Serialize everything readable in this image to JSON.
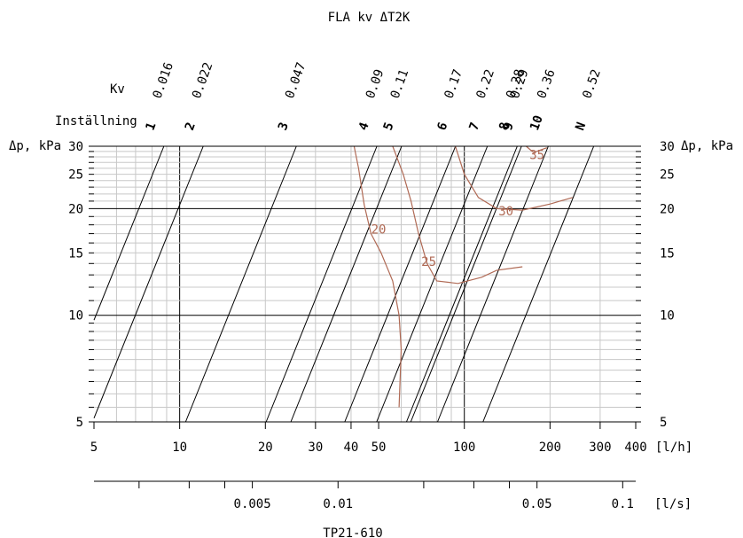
{
  "chart_data": {
    "type": "line",
    "title": "FLA  kv ΔT2K",
    "footer": "TP21-610",
    "x_axis": {
      "unit": "[l/h]",
      "scale": "log",
      "range": [
        5,
        400
      ],
      "tick_labels": [
        "5",
        "10",
        "20",
        "30",
        "40",
        "50",
        "100",
        "200",
        "300",
        "400"
      ],
      "tick_values": [
        5,
        10,
        20,
        30,
        40,
        50,
        100,
        200,
        300,
        400
      ]
    },
    "x2_axis": {
      "unit": "[l/s]",
      "scale": "log",
      "tick_labels": [
        "0.005",
        "0.01",
        "0.05",
        "0.1"
      ],
      "tick_values": [
        0.005,
        0.01,
        0.05,
        0.1
      ]
    },
    "y_axis": {
      "label": "Δp, kPa",
      "scale": "log",
      "range": [
        5,
        30
      ],
      "tick_labels": [
        "5",
        "10",
        "15",
        "20",
        "25",
        "30"
      ],
      "tick_values": [
        5,
        10,
        15,
        20,
        25,
        30
      ]
    },
    "kv_row_label": "Kv",
    "setting_row_label": "Inställning",
    "valve_settings": [
      {
        "setting": "1",
        "kv": "0.016",
        "flow_at_30kPa": 8.8
      },
      {
        "setting": "2",
        "kv": "0.022",
        "flow_at_30kPa": 12.1
      },
      {
        "setting": "3",
        "kv": "0.047",
        "flow_at_30kPa": 25.7
      },
      {
        "setting": "4",
        "kv": "0.09",
        "flow_at_30kPa": 49.3
      },
      {
        "setting": "5",
        "kv": "0.11",
        "flow_at_30kPa": 60.2
      },
      {
        "setting": "6",
        "kv": "0.17",
        "flow_at_30kPa": 93.1
      },
      {
        "setting": "7",
        "kv": "0.22",
        "flow_at_30kPa": 120.5
      },
      {
        "setting": "8",
        "kv": "0.28",
        "flow_at_30kPa": 153.4
      },
      {
        "setting": "9",
        "kv": "0.29",
        "flow_at_30kPa": 158.8
      },
      {
        "setting": "10",
        "kv": "0.36",
        "flow_at_30kPa": 197.2
      },
      {
        "setting": "N",
        "kv": "0.52",
        "flow_at_30kPa": 284.8
      }
    ],
    "contours": [
      {
        "label": "20",
        "points": [
          [
            41,
            30
          ],
          [
            42.5,
            26
          ],
          [
            44.5,
            20.5
          ],
          [
            47,
            17
          ],
          [
            51,
            15
          ],
          [
            56,
            12.5
          ],
          [
            59,
            10
          ],
          [
            60,
            8
          ],
          [
            59,
            5.5
          ]
        ]
      },
      {
        "label": "25",
        "points": [
          [
            56,
            30
          ],
          [
            61,
            25
          ],
          [
            65,
            21
          ],
          [
            69,
            17
          ],
          [
            74,
            14
          ],
          [
            80,
            12.5
          ],
          [
            95,
            12.3
          ],
          [
            115,
            12.8
          ],
          [
            130,
            13.4
          ],
          [
            160,
            13.7
          ]
        ]
      },
      {
        "label": "30",
        "points": [
          [
            93,
            30
          ],
          [
            100,
            25
          ],
          [
            112,
            21.5
          ],
          [
            130,
            20
          ],
          [
            160,
            19.8
          ],
          [
            200,
            20.6
          ],
          [
            240,
            21.5
          ]
        ]
      },
      {
        "label": "35",
        "points": [
          [
            165,
            30
          ],
          [
            175,
            28.8
          ],
          [
            195,
            29.7
          ]
        ]
      }
    ],
    "contour_label_positions": [
      {
        "label": "20",
        "x": 50,
        "y": 17.5
      },
      {
        "label": "25",
        "x": 75,
        "y": 14.2
      },
      {
        "label": "30",
        "x": 140,
        "y": 19.7
      },
      {
        "label": "35",
        "x": 180,
        "y": 28.4
      }
    ],
    "grid": true,
    "colors": {
      "contour": "#b06a55",
      "grid": "#c8c8c8",
      "axis": "#000000"
    }
  }
}
